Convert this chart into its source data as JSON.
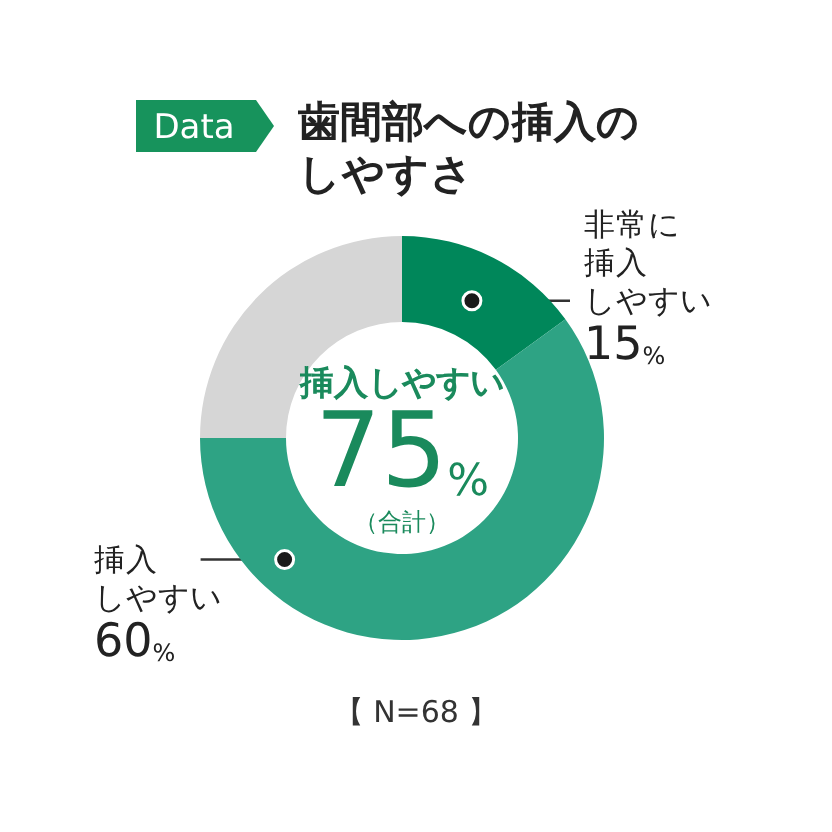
{
  "chart_data": {
    "type": "donut",
    "title": "歯間部への挿入のしやすさ",
    "categories": [
      "非常に挿入しやすい",
      "挿入しやすい",
      null
    ],
    "values": [
      15,
      60,
      25
    ],
    "colors": [
      "#00875a",
      "#2ea384",
      "#d6d6d6"
    ],
    "value_labels": [
      "15%",
      "60%",
      null
    ],
    "annotations": [
      "Data",
      "挿入しやすい",
      "75%",
      "（合計）",
      "【 N=68 】"
    ]
  }
}
